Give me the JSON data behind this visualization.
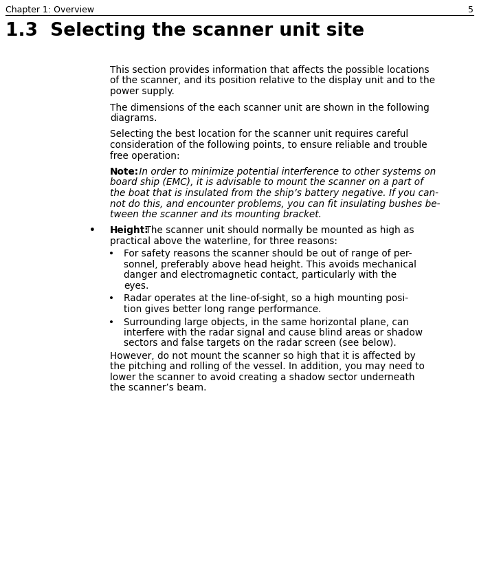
{
  "bg_color": "#ffffff",
  "header_text": "Chapter 1: Overview",
  "header_page": "5",
  "title": "1.3  Selecting the scanner unit site",
  "paragraphs": [
    "This section provides information that affects the possible locations of the scanner, and its position relative to the display unit and to the power supply.",
    "The dimensions of the each scanner unit are shown in the following diagrams.",
    "Selecting the best location for the scanner unit requires careful consideration of the following points, to ensure reliable and trouble free operation:"
  ],
  "note_bold": "Note:",
  "note_italic": " In order to minimize potential interference to other systems on board ship (EMC), it is advisable to mount the scanner on a part of the boat that is insulated from the ship’s battery negative. If you can-not do this, and encounter problems, you can fit insulating bushes be-tween the scanner and its mounting bracket.",
  "bullet1_bold": "Height:",
  "bullet1_rest": " The scanner unit should normally be mounted as high as practical above the waterline, for three reasons:",
  "sub_bullets": [
    "For safety reasons the scanner should be out of range of per-sonnel, preferably above head height. This avoids mechanical danger and electromagnetic contact, particularly with the eyes.",
    "Radar operates at the line-of-sight, so a high mounting posi-tion gives better long range performance.",
    "Surrounding large objects, in the same horizontal plane, can interfere with the radar signal and cause blind areas or shadow sectors and false targets on the radar screen (see below)."
  ],
  "closing_para": "However, do not mount the scanner so high that it is affected by the pitching and rolling of the vessel. In addition, you may need to lower the scanner to avoid creating a shadow sector underneath the scanner’s beam."
}
